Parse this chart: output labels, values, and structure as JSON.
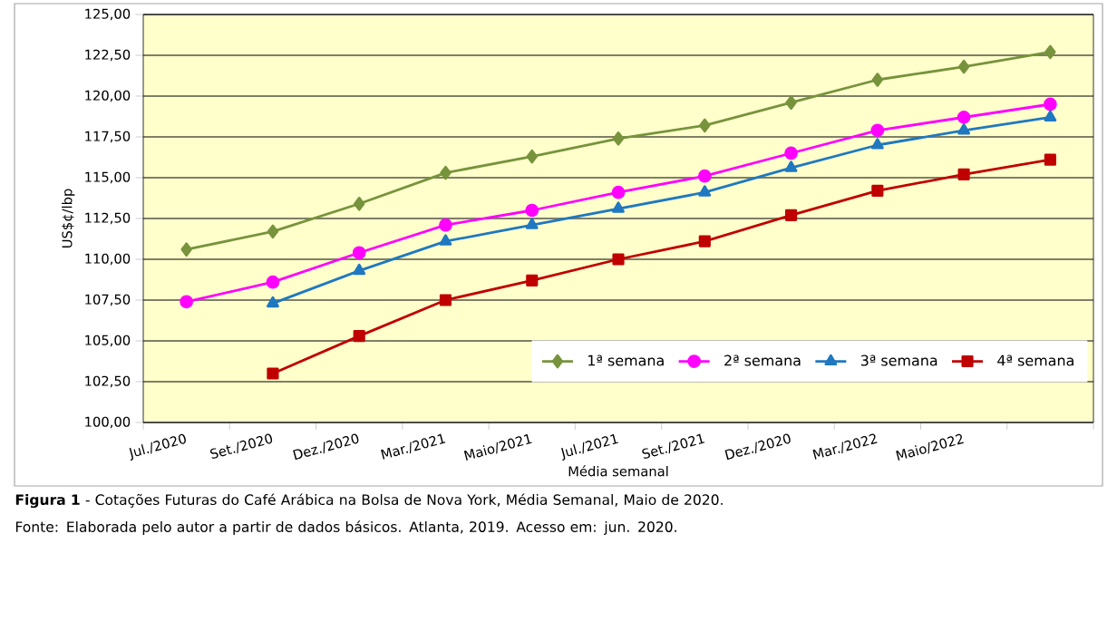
{
  "chart_data": {
    "type": "line",
    "title": "**Figura 1** - Cotações Futuras do Café Arábica na Bolsa de Nova York, Média Semanal, Maio de 2020.",
    "annotations": [
      "Fonte: Elaborada pelo autor a partir de dados básicos. Atlanta, 2019. Acesso em: jun. 2020."
    ],
    "xlabel": "Média semanal",
    "ylabel": "US$¢/lbp",
    "categories": [
      "Jul./2020",
      "Set./2020",
      "Dez./2020",
      "Mar./2021",
      "Maio/2021",
      "Jul./2021",
      "Set./2021",
      "Dez./2020",
      "Mar./2022",
      "Maio/2022",
      null
    ],
    "series": [
      {
        "name": "1ª semana",
        "color": "#77933c",
        "marker": "diamond",
        "values": [
          110.6,
          111.7,
          113.4,
          115.3,
          116.3,
          117.4,
          118.2,
          119.6,
          121.0,
          121.8,
          122.7
        ]
      },
      {
        "name": "2ª semana",
        "color": "#ff00ff",
        "marker": "circle",
        "values": [
          107.4,
          108.6,
          110.4,
          112.1,
          113.0,
          114.1,
          115.1,
          116.5,
          117.9,
          118.7,
          119.5
        ]
      },
      {
        "name": "3ª semana",
        "color": "#1f78c0",
        "marker": "triangle",
        "values": [
          null,
          107.3,
          109.3,
          111.1,
          112.1,
          113.1,
          114.1,
          115.6,
          117.0,
          117.9,
          118.7
        ]
      },
      {
        "name": "4ª semana",
        "color": "#c00000",
        "marker": "square",
        "values": [
          null,
          103.0,
          105.3,
          107.5,
          108.7,
          110.0,
          111.1,
          112.7,
          114.2,
          115.2,
          116.1
        ]
      }
    ],
    "ylim": [
      100,
      125
    ],
    "yticks": [
      {
        "value": 100,
        "label": "100,00"
      },
      {
        "value": 102.5,
        "label": "102,50"
      },
      {
        "value": 105,
        "label": "105,00"
      },
      {
        "value": 107.5,
        "label": "107,50"
      },
      {
        "value": 110,
        "label": "110,00"
      },
      {
        "value": 112.5,
        "label": "112,50"
      },
      {
        "value": 115,
        "label": "115,00"
      },
      {
        "value": 117.5,
        "label": "117,50"
      },
      {
        "value": 120,
        "label": "120,00"
      },
      {
        "value": 122.5,
        "label": "122,50"
      },
      {
        "value": 125,
        "label": "125,00"
      }
    ],
    "grid": "y",
    "legend": "bottom right"
  }
}
